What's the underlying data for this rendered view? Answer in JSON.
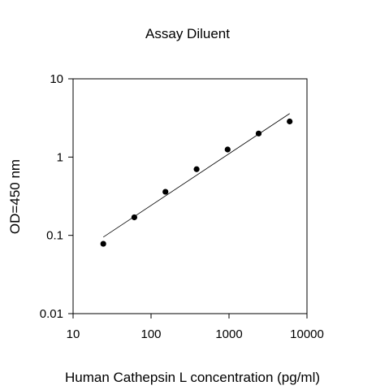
{
  "chart_data": {
    "type": "scatter",
    "title": "Assay Diluent",
    "xlabel": "Human Cathepsin L concentration (pg/ml)",
    "ylabel": "OD=450 nm",
    "x_scale": "log",
    "y_scale": "log",
    "xlim": [
      10,
      10000
    ],
    "ylim": [
      0.01,
      10
    ],
    "x_ticks": [
      "10",
      "100",
      "1000",
      "10000"
    ],
    "y_ticks": [
      "0.01",
      "0.1",
      "1",
      "10"
    ],
    "grid": false,
    "legend": "none",
    "series": [
      {
        "x": [
          24.4,
          61,
          153,
          384,
          960,
          2400,
          6000
        ],
        "y": [
          0.078,
          0.17,
          0.36,
          0.7,
          1.25,
          2.0,
          2.85
        ]
      }
    ],
    "fit_line": {
      "x": [
        24.4,
        6000
      ],
      "y": [
        0.095,
        3.6
      ]
    }
  }
}
